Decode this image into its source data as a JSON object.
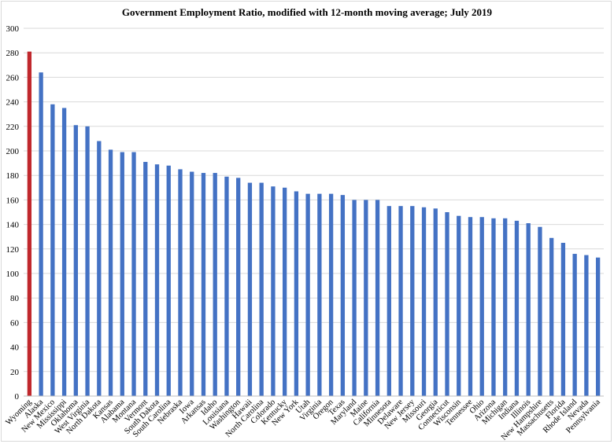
{
  "chart_data": {
    "type": "bar",
    "title": "Government Employment Ratio, modified with 12-month moving average; July 2019",
    "xlabel": "",
    "ylabel": "",
    "ylim": [
      0,
      300
    ],
    "yticks": [
      0,
      20,
      40,
      60,
      80,
      100,
      120,
      140,
      160,
      180,
      200,
      220,
      240,
      260,
      280,
      300
    ],
    "grid": true,
    "legend": "none",
    "colors": {
      "default": "#4472c4",
      "highlight": "#c0282d",
      "grid": "#d9d9d9",
      "axis": "#bfbfbf"
    },
    "highlight_category": "Wyoming",
    "categories": [
      "Wyoming",
      "Alaska",
      "New Mexico",
      "Mississippi",
      "Oklahoma",
      "West Virginia",
      "North Dakota",
      "Kansas",
      "Alabama",
      "Montana",
      "Vermont",
      "South Dakota",
      "South Carolina",
      "Nebraska",
      "Iowa",
      "Arkansas",
      "Idaho",
      "Louisiana",
      "Washington",
      "Hawaii",
      "North Carolina",
      "Colorado",
      "Kentucky",
      "New York",
      "Utah",
      "Virginia",
      "Oregon",
      "Texas",
      "Maryland",
      "Maine",
      "California",
      "Minnesota",
      "Delaware",
      "New Jersey",
      "Missouri",
      "Georgia",
      "Connecticut",
      "Wisconsin",
      "Tennessee",
      "Ohio",
      "Arizona",
      "Michigan",
      "Indiana",
      "Illinois",
      "New Hampshire",
      "Massachusetts",
      "Florida",
      "Rhode Island",
      "Nevada",
      "Pennsylvania"
    ],
    "values": [
      281,
      264,
      238,
      235,
      221,
      220,
      208,
      201,
      199,
      199,
      191,
      189,
      188,
      185,
      183,
      182,
      182,
      179,
      178,
      174,
      174,
      171,
      170,
      167,
      165,
      165,
      165,
      164,
      160,
      160,
      160,
      155,
      155,
      155,
      154,
      153,
      150,
      147,
      146,
      146,
      145,
      145,
      143,
      141,
      138,
      129,
      125,
      116,
      115,
      113
    ]
  }
}
